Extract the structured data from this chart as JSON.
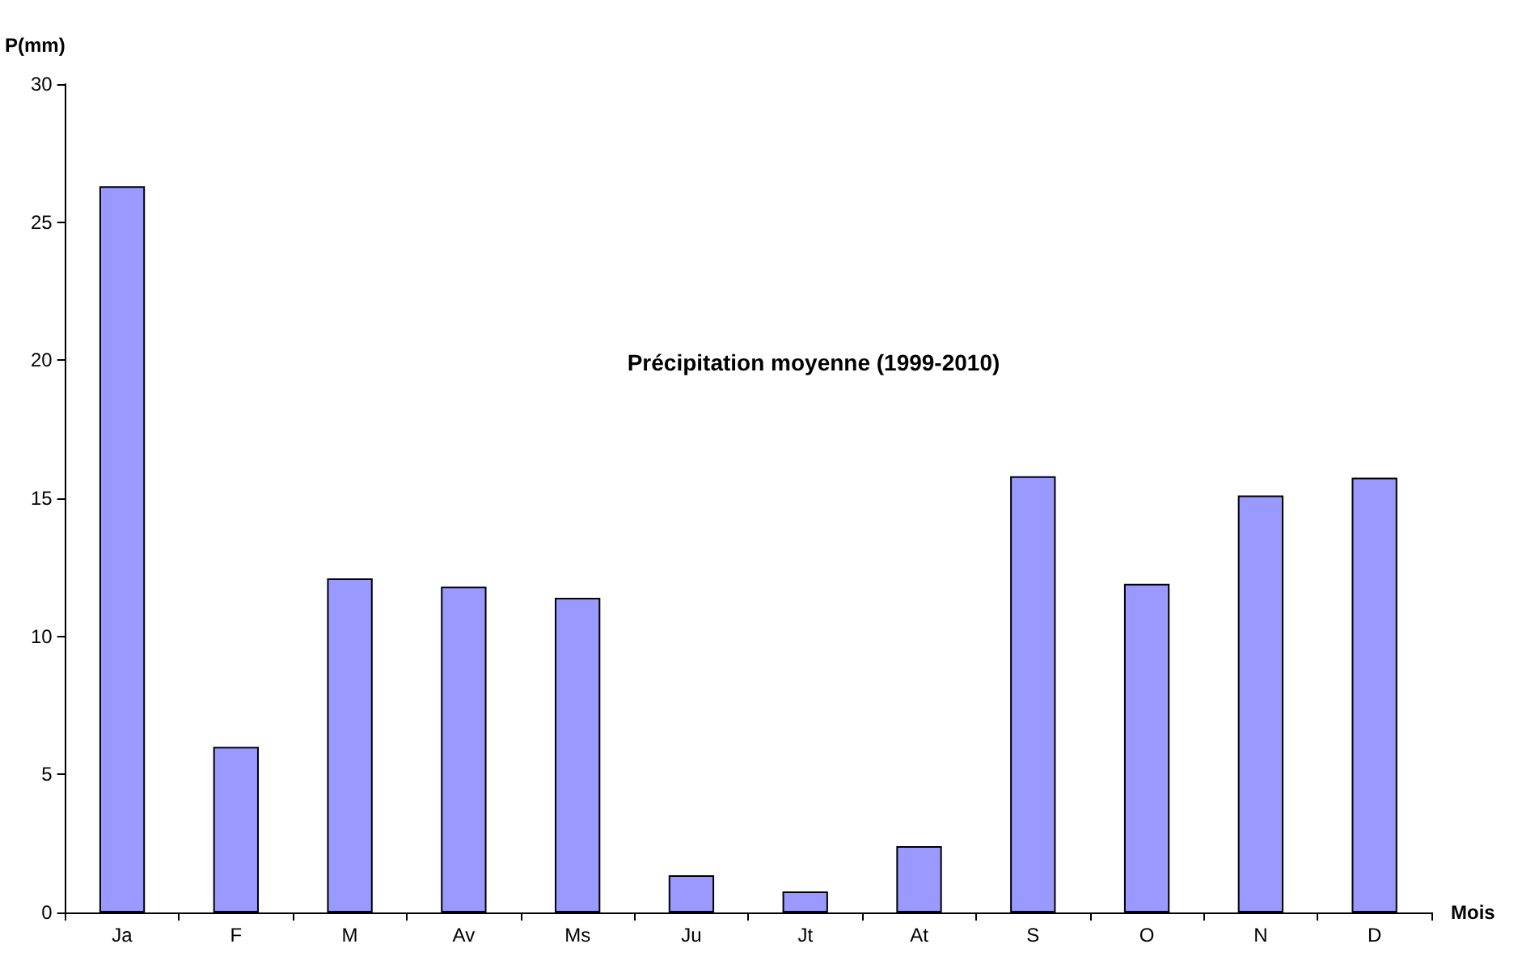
{
  "chart_data": {
    "type": "bar",
    "title": "Précipitation moyenne (1999-2010)",
    "xlabel": "Mois",
    "ylabel": "P(mm)",
    "categories": [
      "Ja",
      "F",
      "M",
      "Av",
      "Ms",
      "Ju",
      "Jt",
      "At",
      "S",
      "O",
      "N",
      "D"
    ],
    "values": [
      26.3,
      6.0,
      12.1,
      11.8,
      11.4,
      1.35,
      0.76,
      2.4,
      15.8,
      11.9,
      15.1,
      15.75
    ],
    "color": "#9999ff",
    "ylim": [
      0,
      30
    ],
    "yticks": [
      0,
      5,
      10,
      15,
      20,
      25,
      30
    ],
    "grid": false
  }
}
